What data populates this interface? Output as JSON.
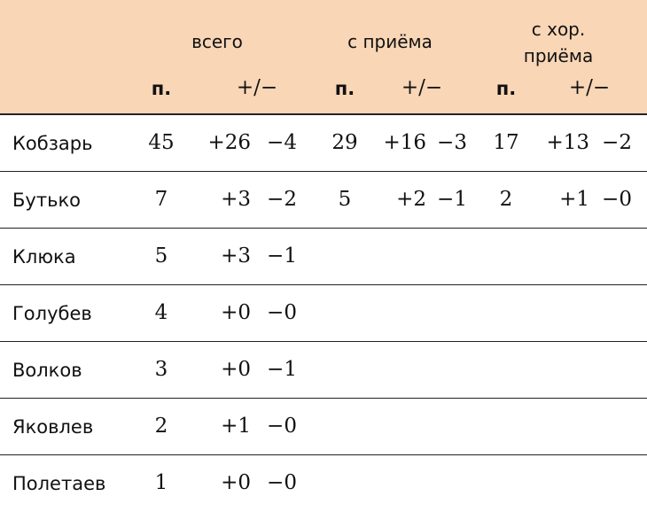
{
  "header": {
    "groups": [
      "всего",
      "с приёма",
      "с хор. приёма"
    ],
    "group3_lines": [
      "с хор.",
      "приёма"
    ],
    "sub": [
      "п.",
      "+/−",
      "п.",
      "+/−",
      "п.",
      "+/−"
    ]
  },
  "colors": {
    "header_bg": "#f9d6b6"
  },
  "rows": [
    {
      "name": "Кобзарь",
      "vals": [
        "45",
        "+26",
        "−4",
        "29",
        "+16",
        "−3",
        "17",
        "+13",
        "−2"
      ]
    },
    {
      "name": "Бутько",
      "vals": [
        "7",
        "+3",
        "−2",
        "5",
        "+2",
        "−1",
        "2",
        "+1",
        "−0"
      ]
    },
    {
      "name": "Клюка",
      "vals": [
        "5",
        "+3",
        "−1",
        "",
        "",
        "",
        "",
        "",
        ""
      ]
    },
    {
      "name": "Голубев",
      "vals": [
        "4",
        "+0",
        "−0",
        "",
        "",
        "",
        "",
        "",
        ""
      ]
    },
    {
      "name": "Волков",
      "vals": [
        "3",
        "+0",
        "−1",
        "",
        "",
        "",
        "",
        "",
        ""
      ]
    },
    {
      "name": "Яковлев",
      "vals": [
        "2",
        "+1",
        "−0",
        "",
        "",
        "",
        "",
        "",
        ""
      ]
    },
    {
      "name": "Полетаев",
      "vals": [
        "1",
        "+0",
        "−0",
        "",
        "",
        "",
        "",
        "",
        ""
      ]
    }
  ]
}
